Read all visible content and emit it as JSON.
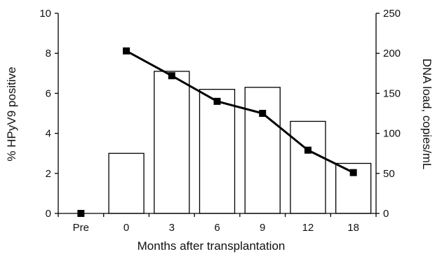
{
  "chart_data": {
    "type": "bar",
    "title": "",
    "xlabel": "Months after transplantation",
    "categories": [
      "Pre",
      "0",
      "3",
      "6",
      "9",
      "12",
      "18"
    ],
    "series": [
      {
        "type": "bar",
        "axis": "left",
        "values": [
          0,
          3.0,
          7.1,
          6.2,
          6.3,
          4.6,
          2.5
        ]
      },
      {
        "type": "line",
        "axis": "right",
        "marker": "square",
        "values": [
          0,
          203,
          172,
          140,
          125,
          79,
          51
        ]
      }
    ],
    "y_left": {
      "label": "% HPyV9 positive",
      "lim": [
        0,
        10
      ],
      "ticks": [
        "0",
        "2",
        "4",
        "6",
        "8",
        "10"
      ]
    },
    "y_right": {
      "label": "DNA load, copies/mL",
      "lim": [
        0,
        250
      ],
      "ticks": [
        "0",
        "50",
        "100",
        "150",
        "200",
        "250"
      ]
    },
    "grid": false,
    "legend": "none",
    "colors": {
      "bar_fill": "#ffffff",
      "bar_stroke": "#000000",
      "line": "#000000",
      "axis": "#000000"
    }
  }
}
